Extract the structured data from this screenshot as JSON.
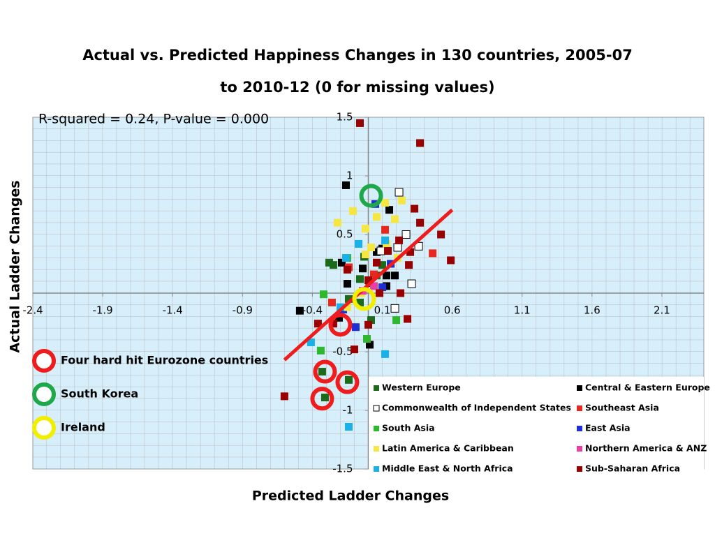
{
  "chart_data": {
    "type": "scatter",
    "title": [
      "Actual vs. Predicted Happiness Changes in 130 countries, 2005-07",
      "to 2010-12 (0 for missing values)"
    ],
    "annotation": "R-squared = 0.24, P-value = 0.000",
    "xlabel": "Predicted Ladder Changes",
    "ylabel": "Actual Ladder Changes",
    "xlim": [
      -2.4,
      2.4
    ],
    "ylim": [
      -1.5,
      1.5
    ],
    "xticks": [
      -2.4,
      -1.9,
      -1.4,
      -0.9,
      -0.4,
      0.1,
      0.6,
      1.1,
      1.6,
      2.1
    ],
    "yticks": [
      -1.5,
      -1,
      -0.5,
      0.5,
      1,
      1.5
    ],
    "grid": true,
    "series": [
      {
        "name": "Western Europe",
        "color": "#1b6b1b",
        "x": [
          -0.28,
          -0.25,
          -0.03,
          -0.06,
          -0.14,
          0.02,
          -0.31,
          -0.33,
          -0.14,
          0.06,
          0.1,
          -0.06
        ],
        "y": [
          0.26,
          0.24,
          0.31,
          0.12,
          -0.05,
          -0.23,
          -0.89,
          -0.67,
          -0.74,
          0.15,
          0.24,
          -0.08
        ]
      },
      {
        "name": "Central & Eastern Europe",
        "color": "#000000",
        "x": [
          -0.16,
          0.15,
          -0.49,
          0.01,
          -0.19,
          -0.15,
          0.06,
          0.1,
          0.13,
          0.13,
          0.19,
          -0.04,
          -0.21
        ],
        "y": [
          0.92,
          0.71,
          -0.15,
          -0.44,
          0.26,
          0.08,
          0.35,
          0.38,
          0.15,
          0.06,
          0.15,
          0.21,
          -0.21
        ]
      },
      {
        "name": "Commonwealth of Independent States",
        "color": "#ffffff",
        "x": [
          0.22,
          0.27,
          0.21,
          0.36,
          0.31,
          0.19,
          0.09,
          0.01
        ],
        "y": [
          0.86,
          0.5,
          0.39,
          0.4,
          0.08,
          -0.13,
          0.36,
          0.09
        ]
      },
      {
        "name": "Southeast Asia",
        "color": "#e8281e",
        "x": [
          0.46,
          0.12,
          -0.26,
          -0.14,
          0.04
        ],
        "y": [
          0.34,
          0.54,
          -0.08,
          0.22,
          0.16
        ]
      },
      {
        "name": "South Asia",
        "color": "#2db82d",
        "x": [
          -0.32,
          -0.34,
          0.2,
          -0.01,
          -0.15
        ],
        "y": [
          -0.01,
          -0.49,
          -0.23,
          -0.39,
          0.3
        ]
      },
      {
        "name": "East Asia",
        "color": "#1f2fd6",
        "x": [
          0.05,
          -0.09,
          0.1,
          0.16,
          -0.18
        ],
        "y": [
          0.76,
          -0.29,
          0.05,
          0.25,
          -0.14
        ]
      },
      {
        "name": "Latin America & Caribbean",
        "color": "#f5e642",
        "x": [
          -0.22,
          -0.11,
          -0.02,
          0.06,
          0.12,
          0.24,
          0.19,
          -0.02,
          0.02,
          0.13,
          -0.05,
          -0.15,
          0.21
        ],
        "y": [
          0.6,
          0.7,
          0.55,
          0.65,
          0.77,
          0.79,
          0.63,
          0.33,
          0.39,
          0.42,
          0,
          -0.12,
          0.3
        ]
      },
      {
        "name": "Northern America & ANZ",
        "color": "#e83ea8",
        "x": [
          0.04,
          -0.04
        ],
        "y": [
          0.06,
          0.02
        ]
      },
      {
        "name": "Middle East & North Africa",
        "color": "#1ab0e8",
        "x": [
          -0.41,
          -0.14,
          0.12,
          -0.16,
          -0.07,
          0.12,
          -0.2
        ],
        "y": [
          -0.42,
          -1.14,
          -0.52,
          0.3,
          0.42,
          0.45,
          -0.12
        ]
      },
      {
        "name": "Sub-Saharan Africa",
        "color": "#990000",
        "x": [
          -0.06,
          0.37,
          0.33,
          0.37,
          0.52,
          0.59,
          0.29,
          0.3,
          0.22,
          0.14,
          0.06,
          0.08,
          0.23,
          0.28,
          -0.36,
          -0.6,
          0,
          -0.15,
          -0.25,
          -0.1,
          0
        ],
        "y": [
          1.45,
          1.28,
          0.72,
          0.6,
          0.5,
          0.28,
          0.24,
          0.35,
          0.45,
          0.36,
          0.26,
          0,
          0,
          -0.22,
          -0.26,
          -0.88,
          0.11,
          0.2,
          -0.26,
          -0.48,
          -0.27
        ]
      }
    ],
    "fit_line": {
      "color": "#ee1c1c",
      "x": [
        -0.6,
        0.6
      ],
      "y": [
        -0.57,
        0.71
      ]
    },
    "highlights": [
      {
        "label": "Four hard hit Eurozone countries",
        "color": "#ee1c1c",
        "x": [
          -0.2,
          -0.31,
          -0.15,
          -0.33
        ],
        "y": [
          -0.27,
          -0.67,
          -0.76,
          -0.9
        ]
      },
      {
        "label": "South Korea",
        "color": "#1fa84a",
        "x": [
          0.02
        ],
        "y": [
          0.83
        ]
      },
      {
        "label": "Ireland",
        "color": "#f2ee00",
        "x": [
          -0.03
        ],
        "y": [
          -0.05
        ]
      }
    ]
  }
}
